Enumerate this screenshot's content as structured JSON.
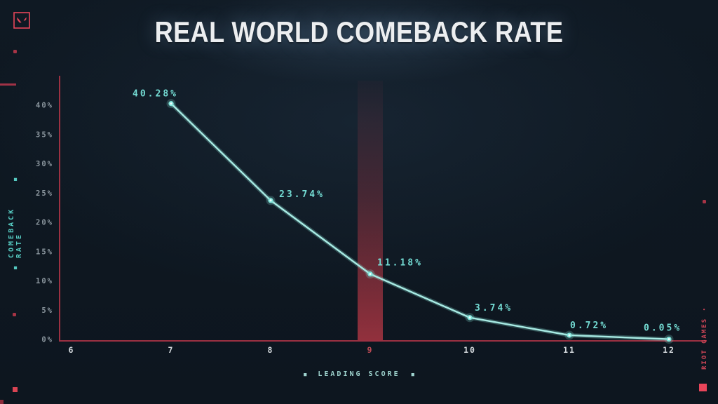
{
  "header": {
    "title": "REAL WORLD COMEBACK RATE"
  },
  "branding": {
    "publisher_vertical_text": "RIOT GAMES"
  },
  "icons": {
    "valorant_logo": "valorant-v-emblem",
    "square_marker": "■",
    "bullet": "•"
  },
  "colors": {
    "background": "#0f1923",
    "accent_red": "#ff4655",
    "axis_red": "#9c3142",
    "line_teal": "#a8ebe4",
    "label_teal": "#74dcd4",
    "tick_gray": "#8b969e",
    "x_tick_light": "#d5dade",
    "x_tick_highlight": "#c04a55"
  },
  "chart_data": {
    "type": "line",
    "title": "REAL WORLD COMEBACK RATE",
    "xlabel": "LEADING SCORE",
    "ylabel": "COMEBACK RATE",
    "x": [
      7,
      8,
      9,
      10,
      11,
      12
    ],
    "values": [
      40.28,
      23.74,
      11.18,
      3.74,
      0.72,
      0.05
    ],
    "point_labels": [
      "40.28%",
      "23.74%",
      "11.18%",
      "3.74%",
      "0.72%",
      "0.05%"
    ],
    "x_tick_values": [
      6,
      7,
      8,
      9,
      10,
      11,
      12
    ],
    "x_ticks": [
      "6",
      "7",
      "8",
      "9",
      "10",
      "11",
      "12"
    ],
    "y_tick_values": [
      0,
      5,
      10,
      15,
      20,
      25,
      30,
      35,
      40
    ],
    "y_ticks": [
      "0%",
      "5%",
      "10%",
      "15%",
      "20%",
      "25%",
      "30%",
      "35%",
      "40%"
    ],
    "xlim": [
      6,
      12
    ],
    "ylim": [
      0,
      40
    ],
    "highlight_x": 9,
    "grid": true,
    "legend": "none",
    "line_color": "#a8ebe4",
    "highlight_color": "#ff4655"
  }
}
